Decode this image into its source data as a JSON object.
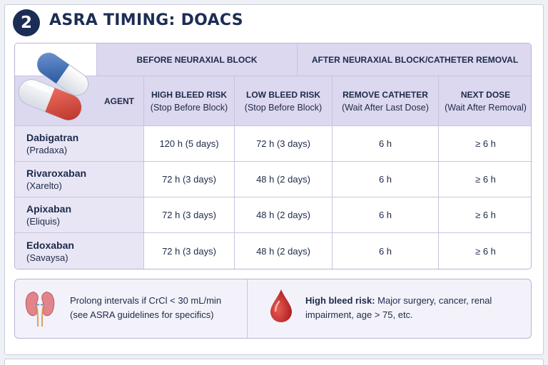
{
  "section_number": "2",
  "title": "ASRA TIMING: DOACS",
  "header": {
    "group_before": "BEFORE NEURAXIAL BLOCK",
    "group_after": "AFTER NEURAXIAL BLOCK/CATHETER REMOVAL",
    "agent": "AGENT",
    "high_bleed": "HIGH BLEED RISK",
    "high_bleed_sub": "(Stop Before Block)",
    "low_bleed": "LOW BLEED RISK",
    "low_bleed_sub": "(Stop Before Block)",
    "remove_catheter": "REMOVE CATHETER",
    "remove_catheter_sub": "(Wait After Last Dose)",
    "next_dose": "NEXT DOSE",
    "next_dose_sub": "(Wait After Removal)"
  },
  "rows": [
    {
      "agent": "Dabigatran",
      "brand": "(Pradaxa)",
      "high": "120 h (5 days)",
      "low": "72 h (3 days)",
      "remove": "6 h",
      "next": "≥ 6 h"
    },
    {
      "agent": "Rivaroxaban",
      "brand": "(Xarelto)",
      "high": "72 h (3 days)",
      "low": "48 h (2 days)",
      "remove": "6 h",
      "next": "≥ 6 h"
    },
    {
      "agent": "Apixaban",
      "brand": "(Eliquis)",
      "high": "72 h (3 days)",
      "low": "48 h (2 days)",
      "remove": "6 h",
      "next": "≥ 6 h"
    },
    {
      "agent": "Edoxaban",
      "brand": "(Savaysa)",
      "high": "72 h (3 days)",
      "low": "48 h (2 days)",
      "remove": "6 h",
      "next": "≥ 6 h"
    }
  ],
  "notes": {
    "renal_line1": "Prolong intervals if CrCl < 30 mL/min",
    "renal_line2": "(see ASRA guidelines for specifics)",
    "bleed_label": "High bleed risk:",
    "bleed_text": "Major surgery, cancer, renal impairment, age > 75, etc."
  },
  "icons": {
    "pills": "capsule-pills-icon",
    "kidney": "kidney-icon",
    "drop": "blood-drop-icon"
  },
  "colors": {
    "navy": "#1c2d55",
    "header_lavender": "#dcd8f0",
    "agent_lavender": "#e8e6f5",
    "capsule_blue": "#3f6fb3",
    "capsule_red": "#d4463a",
    "drop_red": "#c8282a"
  }
}
